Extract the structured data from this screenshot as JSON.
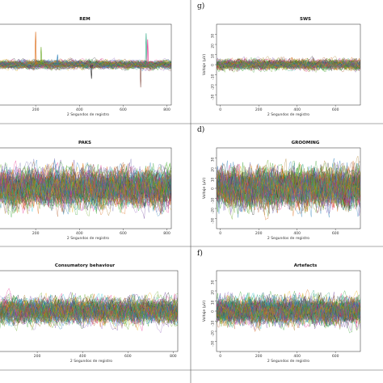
{
  "panel_labels": [
    "",
    "g)",
    "",
    "d)",
    "",
    "f)"
  ],
  "chart_data": [
    {
      "type": "line",
      "title": "REM",
      "xlabel": "2 Segundos de registro",
      "ylabel": "",
      "x_ticks": [
        "200",
        "400",
        "600",
        "800"
      ],
      "y_ticks": [],
      "xlim": [
        0,
        820
      ],
      "ylim": [
        -8,
        8
      ],
      "amplitude": 0.18,
      "spikes": [
        {
          "x": 200,
          "y": 6.5
        },
        {
          "x": 225,
          "y": 3.5
        },
        {
          "x": 300,
          "y": 2.0
        },
        {
          "x": 455,
          "y": -2.8
        },
        {
          "x": 680,
          "y": -4.5
        },
        {
          "x": 705,
          "y": 6.2
        },
        {
          "x": 712,
          "y": 5.0
        }
      ]
    },
    {
      "type": "line",
      "title": "SWS",
      "xlabel": "2 Segundos de registro",
      "ylabel": "Voltaje (µV)",
      "x_ticks": [
        "0",
        "200",
        "400",
        "600"
      ],
      "y_ticks": [
        "30",
        "20",
        "10",
        "0",
        "-10",
        "-20",
        "-30"
      ],
      "xlim": [
        -20,
        730
      ],
      "ylim": [
        -40,
        40
      ],
      "amplitude": 0.22,
      "spikes": []
    },
    {
      "type": "line",
      "title": "PAKS",
      "xlabel": "2 Segundos de registro",
      "ylabel": "",
      "x_ticks": [
        "200",
        "400",
        "600",
        "800"
      ],
      "y_ticks": [],
      "xlim": [
        0,
        820
      ],
      "ylim": [
        -40,
        40
      ],
      "amplitude": 0.85,
      "spikes": []
    },
    {
      "type": "line",
      "title": "GROOMING",
      "xlabel": "2 Segundos de registro",
      "ylabel": "Voltaje (µV)",
      "x_ticks": [
        "0",
        "200",
        "400",
        "600"
      ],
      "y_ticks": [
        "30",
        "20",
        "10",
        "0",
        "-10",
        "-20",
        "-30"
      ],
      "xlim": [
        -20,
        730
      ],
      "ylim": [
        -40,
        40
      ],
      "amplitude": 0.85,
      "spikes": []
    },
    {
      "type": "line",
      "title": "Consumatory behaviour",
      "xlabel": "2 Segundos de registro",
      "ylabel": "",
      "x_ticks": [
        "200",
        "400",
        "600",
        "800"
      ],
      "y_ticks": [],
      "xlim": [
        0,
        820
      ],
      "ylim": [
        -40,
        40
      ],
      "amplitude": 0.55,
      "spikes": []
    },
    {
      "type": "line",
      "title": "Artefacts",
      "xlabel": "2 Segundos de registro",
      "ylabel": "Voltaje (µV)",
      "x_ticks": [
        "0",
        "200",
        "400",
        "600"
      ],
      "y_ticks": [
        "30",
        "20",
        "10",
        "0",
        "-10",
        "-20",
        "-30"
      ],
      "xlim": [
        -20,
        730
      ],
      "ylim": [
        -40,
        40
      ],
      "amplitude": 0.6,
      "spikes": []
    }
  ],
  "trace_colors": [
    "#1b9e77",
    "#d95f02",
    "#7570b3",
    "#e7298a",
    "#66a61e",
    "#e6ab02",
    "#a6761d",
    "#1f78b4",
    "#33a02c",
    "#6a3d9a",
    "#222222",
    "#b15928",
    "#17becf",
    "#8c564b",
    "#2ca02c",
    "#9467bd"
  ]
}
